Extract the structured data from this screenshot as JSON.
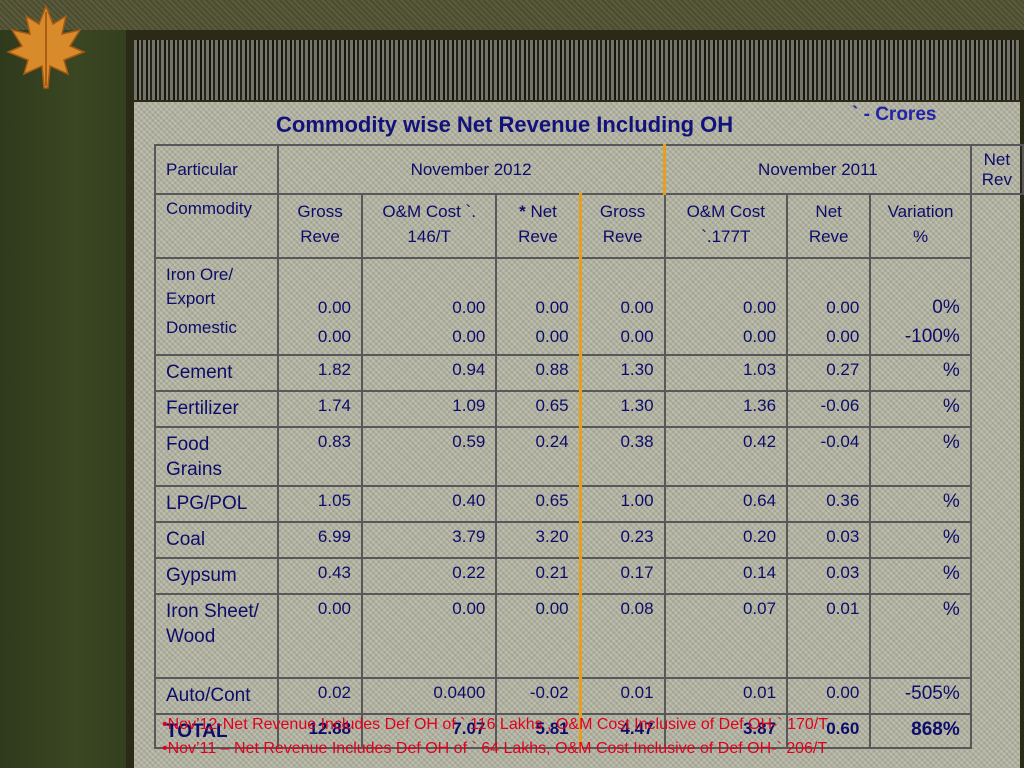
{
  "title": "Commodity wise Net Revenue Including OH",
  "unit_note": "` - Crores",
  "table": {
    "header1": {
      "particular": "Particular",
      "nov2012": "November 2012",
      "nov2011": "November 2011",
      "netrev": "Net Rev"
    },
    "header2": {
      "commodity": "Commodity",
      "gross_reve_a": "Gross Reve",
      "om_cost_a": "O&M Cost `. 146/T",
      "net_star": "*",
      "net_reve_a": "Net Reve",
      "gross_reve_b": "Gross Reve",
      "om_cost_b": "O&M Cost `.177T",
      "net_reve_b": "Net Reve",
      "variation": "Variation %"
    },
    "iron_ore": {
      "label1": "Iron Ore/ Export",
      "label2": "Domestic",
      "export": [
        "0.00",
        "0.00",
        "0.00",
        "0.00",
        "0.00",
        "0.00",
        "0%"
      ],
      "domestic": [
        "0.00",
        "0.00",
        "0.00",
        "0.00",
        "0.00",
        "0.00",
        "-100%"
      ]
    },
    "rows": [
      {
        "label": "Cement",
        "v": [
          "1.82",
          "0.94",
          "0.88",
          "1.30",
          "1.03",
          "0.27",
          "%"
        ]
      },
      {
        "label": "Fertilizer",
        "v": [
          "1.74",
          "1.09",
          "0.65",
          "1.30",
          "1.36",
          "-0.06",
          "%"
        ]
      },
      {
        "label": "Food Grains",
        "v": [
          "0.83",
          "0.59",
          "0.24",
          "0.38",
          "0.42",
          "-0.04",
          "%"
        ]
      },
      {
        "label": "LPG/POL",
        "v": [
          "1.05",
          "0.40",
          "0.65",
          "1.00",
          "0.64",
          "0.36",
          "%"
        ]
      },
      {
        "label": "Coal",
        "v": [
          "6.99",
          "3.79",
          "3.20",
          "0.23",
          "0.20",
          "0.03",
          "%"
        ]
      },
      {
        "label": "Gypsum",
        "v": [
          "0.43",
          "0.22",
          "0.21",
          "0.17",
          "0.14",
          "0.03",
          "%"
        ]
      },
      {
        "label": "Iron Sheet/ Wood",
        "v": [
          "0.00",
          "0.00",
          "0.00",
          "0.08",
          "0.07",
          "0.01",
          "%"
        ]
      },
      {
        "label": "Auto/Cont",
        "v": [
          "0.02",
          "0.0400",
          "-0.02",
          "0.01",
          "0.01",
          "0.00",
          "-505%"
        ]
      }
    ],
    "total": {
      "label": "TOTAL",
      "v": [
        "12.88",
        "7.07",
        "5.81",
        "4.47",
        "3.87",
        "0.60",
        "868%"
      ]
    }
  },
  "footnotes": [
    "•Nov’12-Net Revenue Includes Def OH of ` 116 Lakhs , O&M Cost Inclusive of Def OH-` 170/T",
    "•Nov’11 – Net Revenue Includes Def OH of  ` 64 Lakhs, O&M Cost Inclusive of Def OH-` 206/T"
  ],
  "colors": {
    "title": "#12127a",
    "footnote": "#e0001e",
    "divider": "#e5a11c"
  }
}
